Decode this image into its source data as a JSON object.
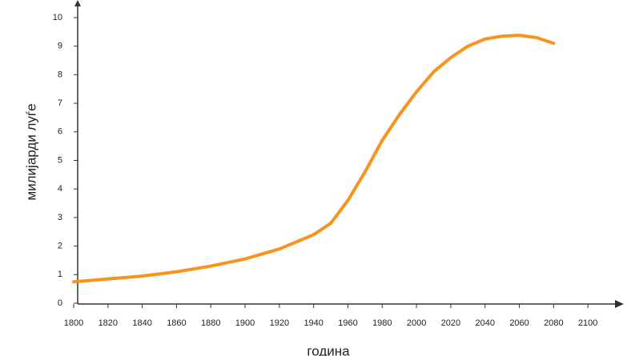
{
  "chart_data": {
    "type": "line",
    "y_label": "милијарди луѓе",
    "x_label": "година",
    "x": [
      1800,
      1820,
      1840,
      1860,
      1880,
      1900,
      1920,
      1940,
      1950,
      1960,
      1970,
      1980,
      1990,
      2000,
      2010,
      2020,
      2030,
      2040,
      2050,
      2060,
      2070,
      2080
    ],
    "series": [
      {
        "color": "#f7941d",
        "values": [
          0.75,
          0.85,
          0.95,
          1.1,
          1.3,
          1.55,
          1.9,
          2.4,
          2.8,
          3.6,
          4.6,
          5.7,
          6.6,
          7.4,
          8.1,
          8.6,
          9.0,
          9.25,
          9.35,
          9.38,
          9.3,
          9.1
        ]
      }
    ],
    "xlim": [
      1800,
      2120
    ],
    "xticks": [
      1800,
      1820,
      1840,
      1860,
      1880,
      1900,
      1920,
      1940,
      1960,
      1980,
      2000,
      2020,
      2040,
      2060,
      2080,
      2100
    ],
    "ylim": [
      0,
      10
    ],
    "yticks": [
      0,
      1,
      2,
      3,
      4,
      5,
      6,
      7,
      8,
      9,
      10
    ]
  }
}
